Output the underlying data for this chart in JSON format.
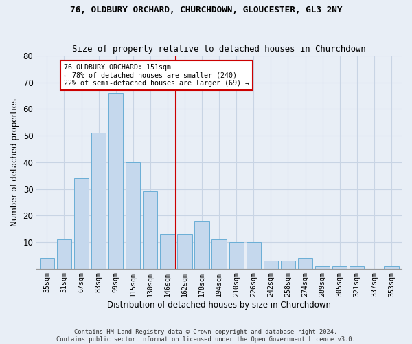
{
  "title_line1": "76, OLDBURY ORCHARD, CHURCHDOWN, GLOUCESTER, GL3 2NY",
  "title_line2": "Size of property relative to detached houses in Churchdown",
  "xlabel": "Distribution of detached houses by size in Churchdown",
  "ylabel": "Number of detached properties",
  "bar_labels": [
    "35sqm",
    "51sqm",
    "67sqm",
    "83sqm",
    "99sqm",
    "115sqm",
    "130sqm",
    "146sqm",
    "162sqm",
    "178sqm",
    "194sqm",
    "210sqm",
    "226sqm",
    "242sqm",
    "258sqm",
    "274sqm",
    "289sqm",
    "305sqm",
    "321sqm",
    "337sqm",
    "353sqm"
  ],
  "bar_values": [
    4,
    11,
    34,
    51,
    66,
    40,
    29,
    13,
    13,
    18,
    11,
    10,
    10,
    3,
    3,
    4,
    1,
    1,
    1,
    0,
    1
  ],
  "bar_color": "#c5d8ed",
  "bar_edge_color": "#6aaed6",
  "grid_color": "#c8d4e4",
  "background_color": "#e8eef6",
  "annotation_text": "76 OLDBURY ORCHARD: 151sqm\n← 78% of detached houses are smaller (240)\n22% of semi-detached houses are larger (69) →",
  "annotation_box_color": "white",
  "annotation_box_edge_color": "#cc0000",
  "vline_color": "#cc0000",
  "ylim": [
    0,
    80
  ],
  "yticks": [
    0,
    10,
    20,
    30,
    40,
    50,
    60,
    70,
    80
  ],
  "footer_line1": "Contains HM Land Registry data © Crown copyright and database right 2024.",
  "footer_line2": "Contains public sector information licensed under the Open Government Licence v3.0."
}
